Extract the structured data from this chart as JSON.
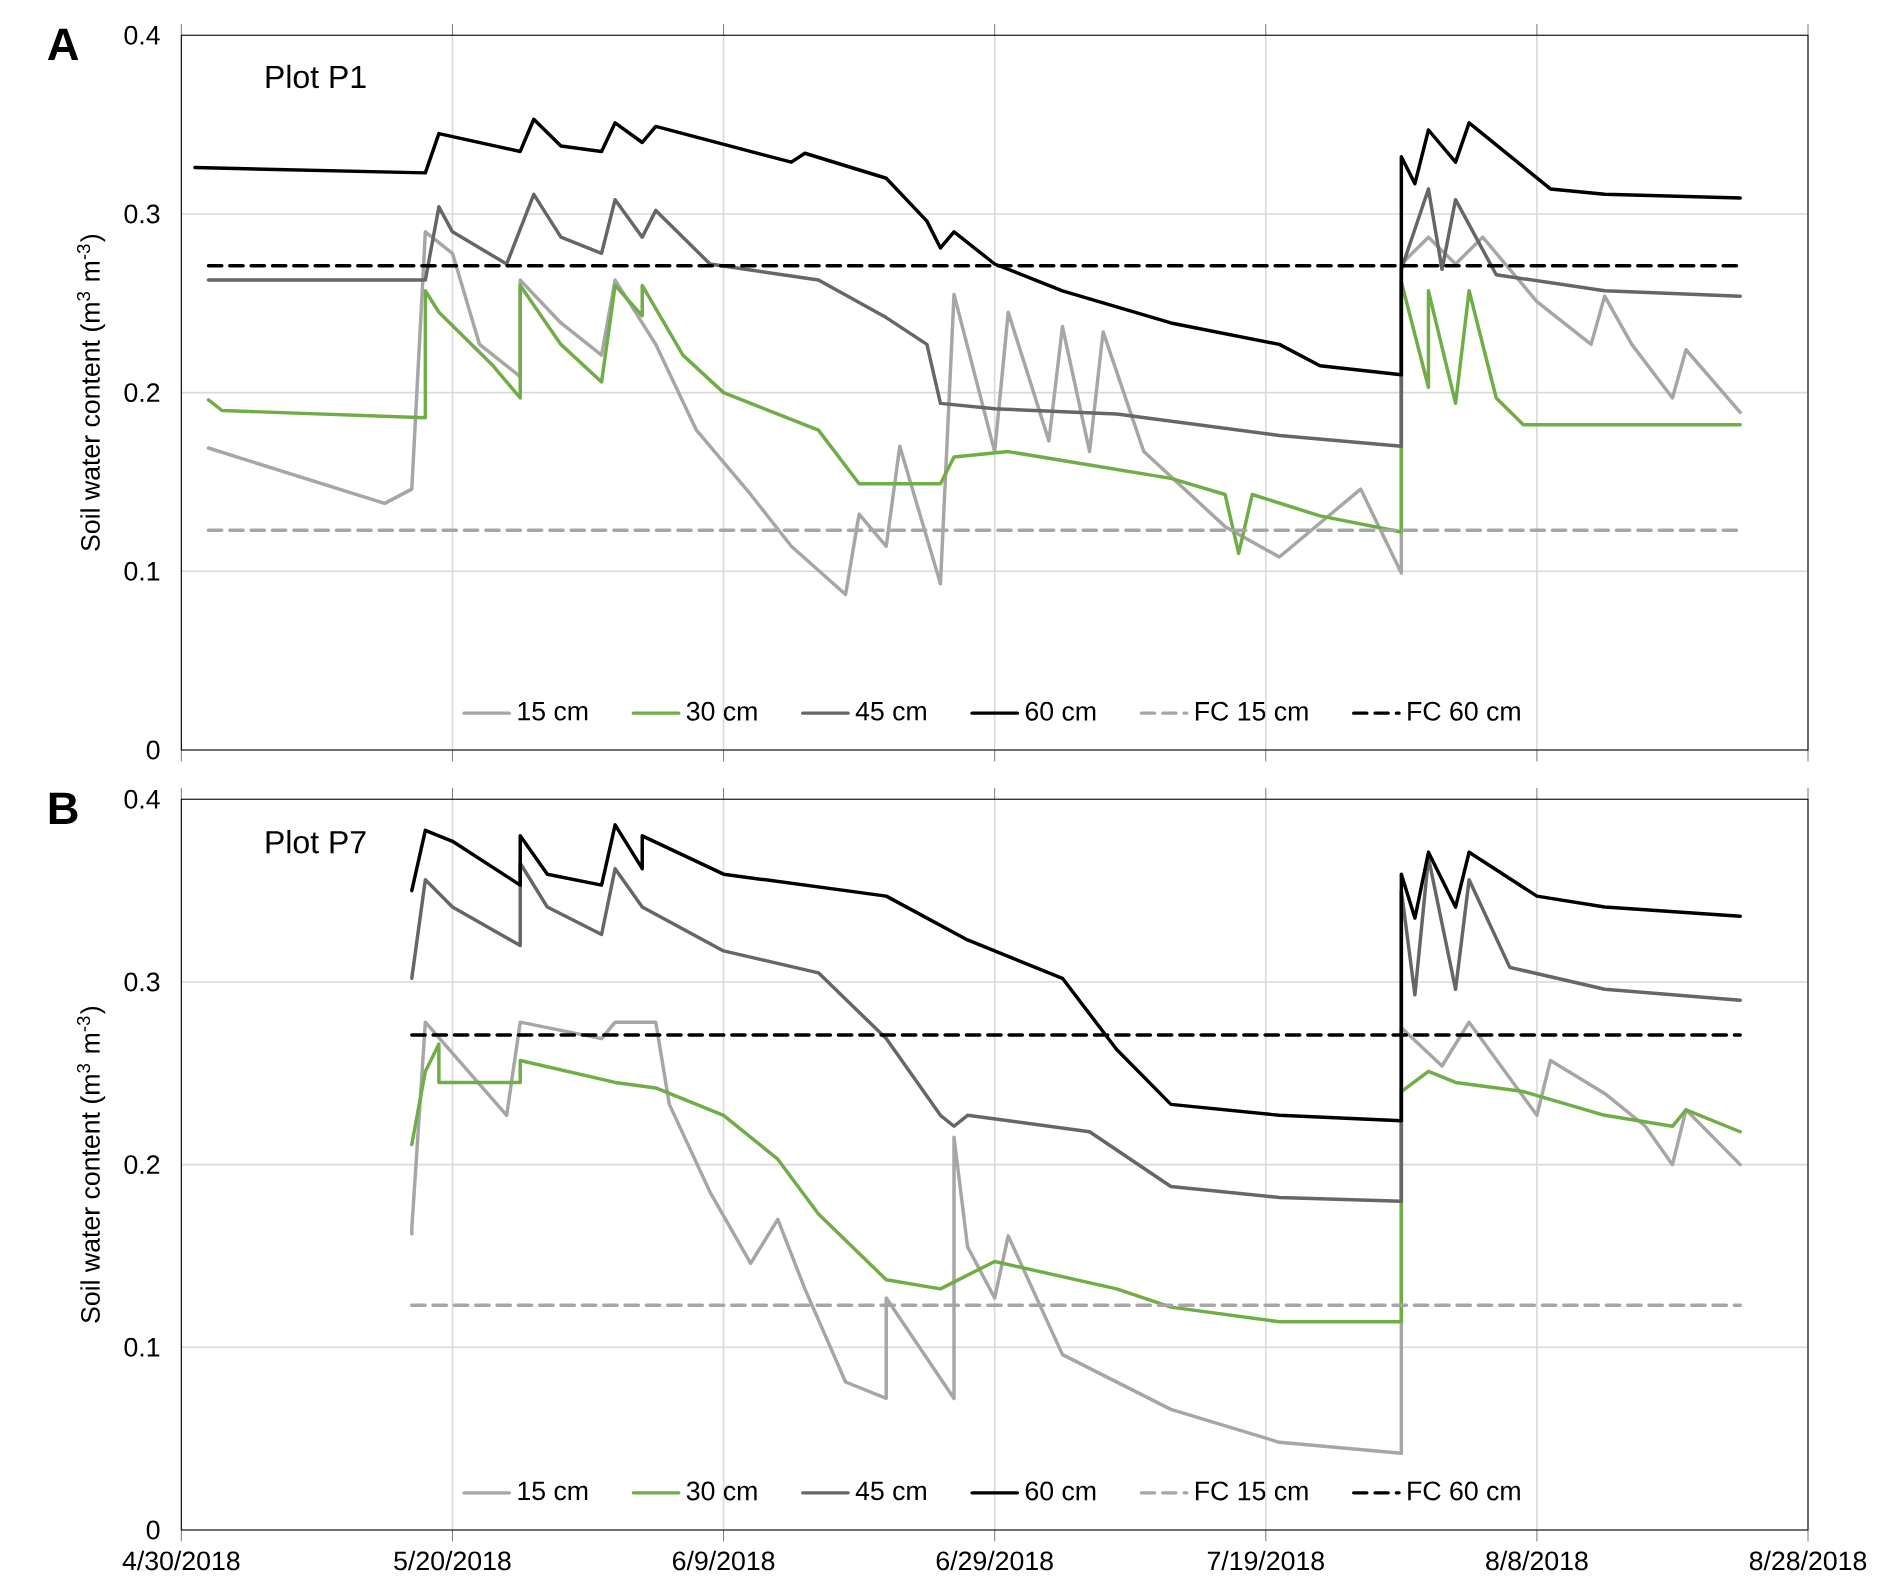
{
  "chart_data": [
    {
      "type": "line",
      "title": "Plot P1",
      "annotations": [
        "A"
      ],
      "ylabel": "Soil water content (m$^{3}$ m$^{-3}$)",
      "xlim": [
        "2018-04-30",
        "2018-08-28"
      ],
      "xticks": [
        {
          "value": "2018-04-30",
          "label": null
        },
        {
          "value": "2018-05-20",
          "label": null
        },
        {
          "value": "2018-06-09",
          "label": null
        },
        {
          "value": "2018-06-29",
          "label": null
        },
        {
          "value": "2018-07-19",
          "label": null
        },
        {
          "value": "2018-08-08",
          "label": null
        },
        {
          "value": "2018-08-28",
          "label": null
        }
      ],
      "ylim": [
        0,
        0.4
      ],
      "yticks": [
        0,
        0.1,
        0.2,
        0.3,
        0.4
      ],
      "tick_labels": "y",
      "grid": true,
      "legend": "bottom",
      "marker": "none",
      "line_style": "solid",
      "series": [
        {
          "name": "15 cm",
          "color": "#a6a6a6",
          "x": [
            "2018-05-02",
            "2018-05-15",
            "2018-05-17",
            "2018-05-18",
            "2018-05-20",
            "2018-05-22",
            "2018-05-25",
            "2018-05-25",
            "2018-05-28",
            "2018-05-31",
            "2018-06-01",
            "2018-06-04",
            "2018-06-07",
            "2018-06-11",
            "2018-06-14",
            "2018-06-18",
            "2018-06-19",
            "2018-06-21",
            "2018-06-22",
            "2018-06-25",
            "2018-06-26",
            "2018-06-29",
            "2018-06-30",
            "2018-07-03",
            "2018-07-04",
            "2018-07-06",
            "2018-07-07",
            "2018-07-10",
            "2018-07-16",
            "2018-07-20",
            "2018-07-26",
            "2018-07-29",
            "2018-07-29",
            "2018-07-31",
            "2018-08-02",
            "2018-08-04",
            "2018-08-08",
            "2018-08-12",
            "2018-08-13",
            "2018-08-15",
            "2018-08-18",
            "2018-08-19",
            "2018-08-23"
          ],
          "values": [
            0.169,
            0.138,
            0.146,
            0.29,
            0.278,
            0.227,
            0.209,
            0.263,
            0.239,
            0.221,
            0.263,
            0.227,
            0.179,
            0.143,
            0.114,
            0.087,
            0.132,
            0.114,
            0.17,
            0.093,
            0.255,
            0.167,
            0.245,
            0.173,
            0.237,
            0.167,
            0.234,
            0.167,
            0.125,
            0.108,
            0.146,
            0.099,
            0.272,
            0.287,
            0.272,
            0.287,
            0.251,
            0.227,
            0.254,
            0.227,
            0.197,
            0.224,
            0.189
          ]
        },
        {
          "name": "30 cm",
          "color": "#70ad47",
          "x": [
            "2018-05-02",
            "2018-05-03",
            "2018-05-18",
            "2018-05-18",
            "2018-05-19",
            "2018-05-23",
            "2018-05-25",
            "2018-05-25",
            "2018-05-28",
            "2018-05-31",
            "2018-06-01",
            "2018-06-03",
            "2018-06-03",
            "2018-06-06",
            "2018-06-09",
            "2018-06-16",
            "2018-06-19",
            "2018-06-25",
            "2018-06-26",
            "2018-06-30",
            "2018-07-12",
            "2018-07-16",
            "2018-07-17",
            "2018-07-18",
            "2018-07-23",
            "2018-07-29",
            "2018-07-29",
            "2018-07-31",
            "2018-07-31",
            "2018-08-02",
            "2018-08-03",
            "2018-08-05",
            "2018-08-07",
            "2018-08-23"
          ],
          "values": [
            0.196,
            0.19,
            0.186,
            0.257,
            0.245,
            0.215,
            0.197,
            0.26,
            0.227,
            0.206,
            0.26,
            0.243,
            0.26,
            0.221,
            0.2,
            0.179,
            0.149,
            0.149,
            0.164,
            0.167,
            0.152,
            0.143,
            0.11,
            0.143,
            0.131,
            0.122,
            0.262,
            0.203,
            0.257,
            0.194,
            0.257,
            0.197,
            0.182,
            0.182
          ]
        },
        {
          "name": "45 cm",
          "color": "#666666",
          "x": [
            "2018-05-02",
            "2018-05-18",
            "2018-05-19",
            "2018-05-20",
            "2018-05-24",
            "2018-05-26",
            "2018-05-28",
            "2018-05-31",
            "2018-06-01",
            "2018-06-03",
            "2018-06-04",
            "2018-06-08",
            "2018-06-16",
            "2018-06-21",
            "2018-06-24",
            "2018-06-25",
            "2018-06-29",
            "2018-07-08",
            "2018-07-20",
            "2018-07-29",
            "2018-07-29",
            "2018-07-31",
            "2018-08-01",
            "2018-08-02",
            "2018-08-05",
            "2018-08-13",
            "2018-08-23"
          ],
          "values": [
            0.263,
            0.263,
            0.304,
            0.29,
            0.272,
            0.311,
            0.287,
            0.278,
            0.308,
            0.287,
            0.302,
            0.272,
            0.263,
            0.242,
            0.227,
            0.194,
            0.191,
            0.188,
            0.176,
            0.17,
            0.269,
            0.314,
            0.269,
            0.308,
            0.266,
            0.257,
            0.254
          ]
        },
        {
          "name": "60 cm",
          "color": "#000000",
          "x": [
            "2018-05-01",
            "2018-05-18",
            "2018-05-19",
            "2018-05-25",
            "2018-05-26",
            "2018-05-28",
            "2018-05-31",
            "2018-06-01",
            "2018-06-03",
            "2018-06-04",
            "2018-06-14",
            "2018-06-15",
            "2018-06-21",
            "2018-06-24",
            "2018-06-25",
            "2018-06-26",
            "2018-06-29",
            "2018-07-04",
            "2018-07-12",
            "2018-07-20",
            "2018-07-23",
            "2018-07-29",
            "2018-07-29",
            "2018-07-30",
            "2018-07-31",
            "2018-08-02",
            "2018-08-03",
            "2018-08-09",
            "2018-08-13",
            "2018-08-23"
          ],
          "values": [
            0.326,
            0.323,
            0.345,
            0.335,
            0.353,
            0.338,
            0.335,
            0.351,
            0.34,
            0.349,
            0.329,
            0.334,
            0.32,
            0.296,
            0.281,
            0.29,
            0.272,
            0.257,
            0.239,
            0.227,
            0.215,
            0.21,
            0.332,
            0.317,
            0.347,
            0.329,
            0.351,
            0.314,
            0.311,
            0.309
          ]
        },
        {
          "name": "FC 15 cm",
          "color": "#a6a6a6",
          "line_style": "dashed",
          "x": [
            "2018-05-02",
            "2018-08-23"
          ],
          "values": [
            0.123,
            0.123
          ]
        },
        {
          "name": "FC 60 cm",
          "color": "#000000",
          "line_style": "dashed",
          "x": [
            "2018-05-02",
            "2018-08-23"
          ],
          "values": [
            0.271,
            0.271
          ]
        }
      ]
    },
    {
      "type": "line",
      "title": "Plot P7",
      "annotations": [
        "B"
      ],
      "ylabel": "Soil water content (m$^{3}$ m$^{-3}$)",
      "xlim": [
        "2018-04-30",
        "2018-08-28"
      ],
      "xticks": [
        {
          "value": "2018-04-30",
          "label": "4/30/2018"
        },
        {
          "value": "2018-05-20",
          "label": "5/20/2018"
        },
        {
          "value": "2018-06-09",
          "label": "6/9/2018"
        },
        {
          "value": "2018-06-29",
          "label": "6/29/2018"
        },
        {
          "value": "2018-07-19",
          "label": "7/19/2018"
        },
        {
          "value": "2018-08-08",
          "label": "8/8/2018"
        },
        {
          "value": "2018-08-28",
          "label": "8/28/2018"
        }
      ],
      "ylim": [
        0,
        0.4
      ],
      "yticks": [
        0,
        0.1,
        0.2,
        0.3,
        0.4
      ],
      "grid": true,
      "legend": "bottom",
      "marker": "none",
      "line_style": "solid",
      "series": [
        {
          "name": "15 cm",
          "color": "#a6a6a6",
          "x": [
            "2018-05-17",
            "2018-05-17",
            "2018-05-18",
            "2018-05-24",
            "2018-05-25",
            "2018-05-31",
            "2018-06-01",
            "2018-06-04",
            "2018-06-05",
            "2018-06-08",
            "2018-06-11",
            "2018-06-13",
            "2018-06-15",
            "2018-06-18",
            "2018-06-21",
            "2018-06-21",
            "2018-06-26",
            "2018-06-26",
            "2018-06-27",
            "2018-06-29",
            "2018-06-30",
            "2018-07-04",
            "2018-07-12",
            "2018-07-20",
            "2018-07-29",
            "2018-07-29",
            "2018-08-01",
            "2018-08-03",
            "2018-08-08",
            "2018-08-09",
            "2018-08-13",
            "2018-08-16",
            "2018-08-18",
            "2018-08-19",
            "2018-08-23"
          ],
          "values": [
            0.162,
            0.165,
            0.278,
            0.227,
            0.278,
            0.269,
            0.278,
            0.278,
            0.233,
            0.185,
            0.146,
            0.17,
            0.132,
            0.081,
            0.072,
            0.127,
            0.072,
            0.215,
            0.155,
            0.127,
            0.161,
            0.096,
            0.066,
            0.048,
            0.042,
            0.275,
            0.254,
            0.278,
            0.227,
            0.257,
            0.239,
            0.221,
            0.2,
            0.23,
            0.2
          ]
        },
        {
          "name": "30 cm",
          "color": "#70ad47",
          "x": [
            "2018-05-17",
            "2018-05-18",
            "2018-05-19",
            "2018-05-19",
            "2018-05-25",
            "2018-05-25",
            "2018-06-01",
            "2018-06-04",
            "2018-06-09",
            "2018-06-13",
            "2018-06-16",
            "2018-06-21",
            "2018-06-25",
            "2018-06-29",
            "2018-07-08",
            "2018-07-12",
            "2018-07-20",
            "2018-07-29",
            "2018-07-29",
            "2018-07-31",
            "2018-08-02",
            "2018-08-07",
            "2018-08-13",
            "2018-08-18",
            "2018-08-19",
            "2018-08-23"
          ],
          "values": [
            0.211,
            0.251,
            0.266,
            0.245,
            0.245,
            0.257,
            0.245,
            0.242,
            0.227,
            0.203,
            0.173,
            0.137,
            0.132,
            0.147,
            0.132,
            0.122,
            0.114,
            0.114,
            0.24,
            0.251,
            0.245,
            0.24,
            0.227,
            0.221,
            0.23,
            0.218
          ]
        },
        {
          "name": "45 cm",
          "color": "#666666",
          "x": [
            "2018-05-17",
            "2018-05-18",
            "2018-05-20",
            "2018-05-25",
            "2018-05-25",
            "2018-05-27",
            "2018-05-31",
            "2018-06-01",
            "2018-06-03",
            "2018-06-09",
            "2018-06-16",
            "2018-06-21",
            "2018-06-25",
            "2018-06-26",
            "2018-06-27",
            "2018-07-06",
            "2018-07-12",
            "2018-07-20",
            "2018-07-29",
            "2018-07-29",
            "2018-07-30",
            "2018-07-31",
            "2018-08-02",
            "2018-08-03",
            "2018-08-06",
            "2018-08-13",
            "2018-08-23"
          ],
          "values": [
            0.302,
            0.356,
            0.341,
            0.32,
            0.365,
            0.341,
            0.326,
            0.362,
            0.341,
            0.317,
            0.305,
            0.269,
            0.227,
            0.221,
            0.227,
            0.218,
            0.188,
            0.182,
            0.18,
            0.35,
            0.293,
            0.368,
            0.296,
            0.356,
            0.308,
            0.296,
            0.29
          ]
        },
        {
          "name": "60 cm",
          "color": "#000000",
          "x": [
            "2018-05-17",
            "2018-05-18",
            "2018-05-20",
            "2018-05-25",
            "2018-05-25",
            "2018-05-27",
            "2018-05-31",
            "2018-06-01",
            "2018-06-03",
            "2018-06-03",
            "2018-06-09",
            "2018-06-21",
            "2018-06-27",
            "2018-07-04",
            "2018-07-08",
            "2018-07-12",
            "2018-07-20",
            "2018-07-29",
            "2018-07-29",
            "2018-07-30",
            "2018-07-31",
            "2018-08-02",
            "2018-08-03",
            "2018-08-08",
            "2018-08-13",
            "2018-08-23"
          ],
          "values": [
            0.35,
            0.383,
            0.377,
            0.353,
            0.38,
            0.359,
            0.353,
            0.386,
            0.362,
            0.38,
            0.359,
            0.347,
            0.323,
            0.302,
            0.263,
            0.233,
            0.227,
            0.224,
            0.359,
            0.335,
            0.371,
            0.341,
            0.371,
            0.347,
            0.341,
            0.336
          ]
        },
        {
          "name": "FC 15 cm",
          "color": "#a6a6a6",
          "line_style": "dashed",
          "x": [
            "2018-05-17",
            "2018-08-23"
          ],
          "values": [
            0.123,
            0.123
          ]
        },
        {
          "name": "FC 60 cm",
          "color": "#000000",
          "line_style": "dashed",
          "x": [
            "2018-05-17",
            "2018-08-23"
          ],
          "values": [
            0.271,
            0.271
          ]
        }
      ]
    }
  ]
}
